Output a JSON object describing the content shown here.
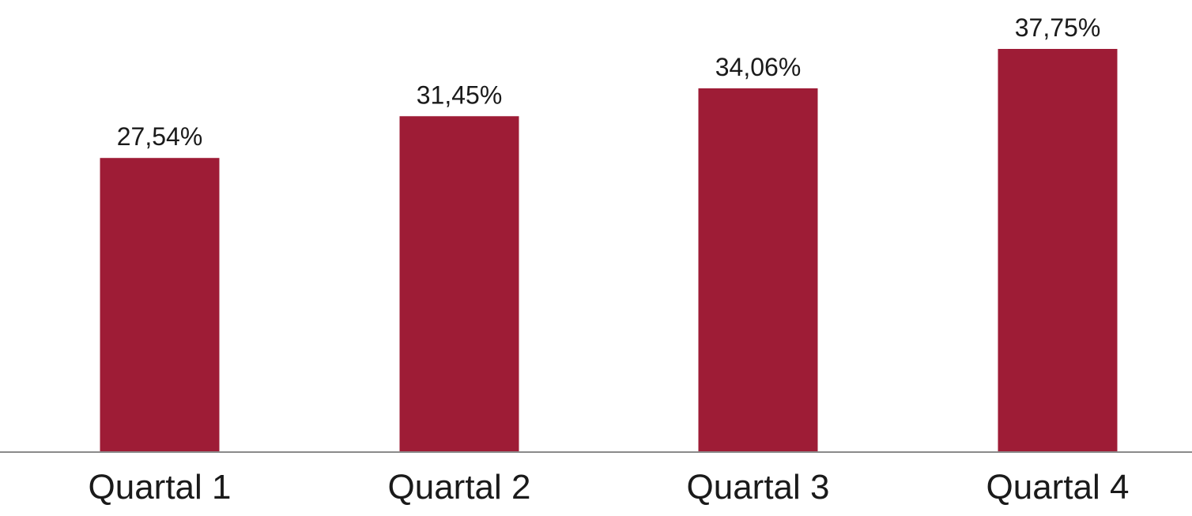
{
  "chart_data": {
    "type": "bar",
    "categories": [
      "Quartal 1",
      "Quartal 2",
      "Quartal 3",
      "Quartal 4"
    ],
    "values": [
      27.54,
      31.45,
      34.06,
      37.75
    ],
    "value_labels": [
      "27,54%",
      "31,45%",
      "34,06%",
      "37,75%"
    ],
    "ylim": [
      0,
      37.75
    ],
    "grid": false,
    "legend": "none",
    "bar_color": "#9E1C36",
    "axis_color": "#8a8a8a",
    "text_color": "#1a1a1a"
  }
}
